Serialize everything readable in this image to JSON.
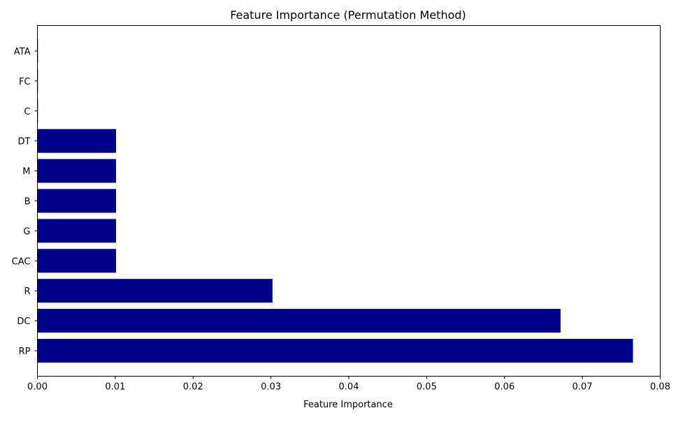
{
  "chart_data": {
    "type": "bar",
    "orientation": "horizontal",
    "title": "Feature Importance (Permutation Method)",
    "xlabel": "Feature Importance",
    "ylabel": "",
    "xlim": [
      0,
      0.08
    ],
    "x_ticks": [
      "0.00",
      "0.01",
      "0.02",
      "0.03",
      "0.04",
      "0.05",
      "0.06",
      "0.07",
      "0.08"
    ],
    "categories": [
      "RP",
      "DC",
      "R",
      "CAC",
      "G",
      "B",
      "M",
      "DT",
      "C",
      "FC",
      "ATA"
    ],
    "values": [
      0.0765,
      0.0672,
      0.0302,
      0.0101,
      0.0101,
      0.0101,
      0.0101,
      0.0101,
      0.0,
      0.0,
      0.0
    ],
    "bar_color": "#00008b",
    "grid": false,
    "legend": "none"
  }
}
